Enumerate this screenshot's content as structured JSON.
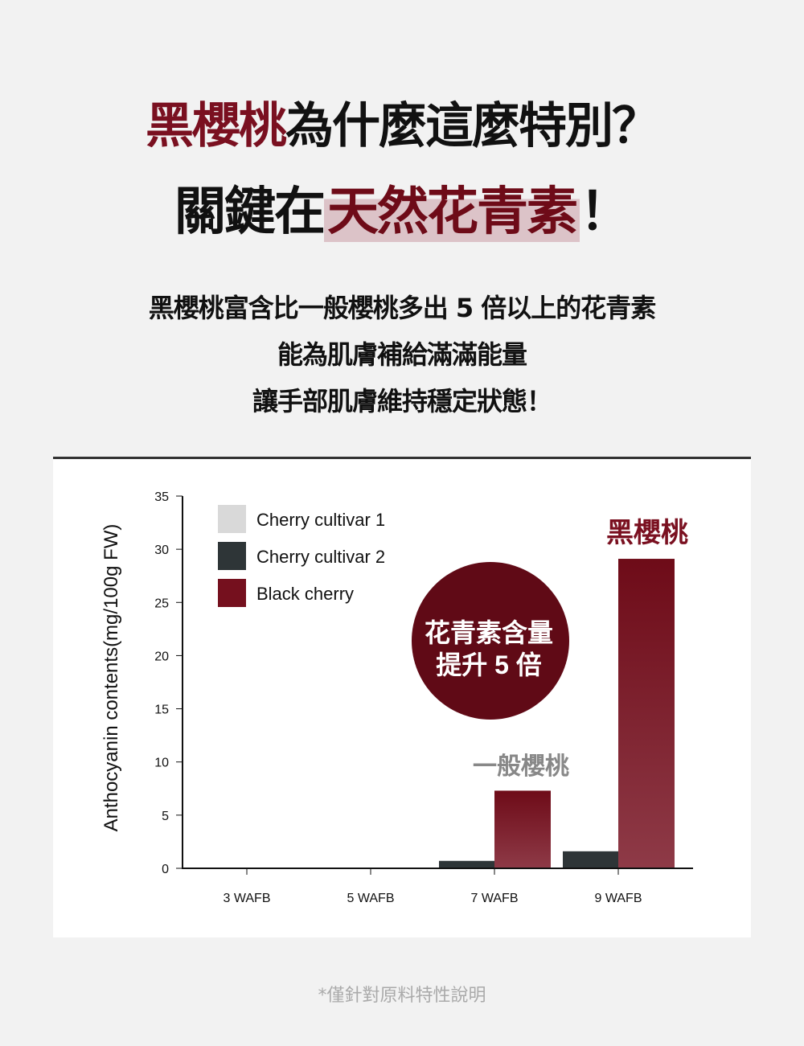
{
  "headline": {
    "line1_highlight": "黑櫻桃",
    "line1_rest": "為什麼這麼特別？",
    "line2_pre": "關鍵在",
    "line2_highlight": "天然花青素",
    "line2_post": "！"
  },
  "body": [
    "黑櫻桃富含比一般櫻桃多出 5 倍以上的花青素",
    "能為肌膚補給滿滿能量",
    "讓手部肌膚維持穩定狀態！"
  ],
  "callout": {
    "line1": "花青素含量",
    "line2": "提升 5 倍"
  },
  "annotations": {
    "black_cherry": "黑櫻桃",
    "regular_cherry": "一般櫻桃"
  },
  "footnote": "*僅針對原料特性說明",
  "colors": {
    "accent": "#6e0b18",
    "cultivar1": "#d9d9d9",
    "cultivar2": "#2e3537",
    "black_cherry": "#75101e"
  },
  "chart_data": {
    "type": "bar",
    "ylabel": "Anthocyanin contents(mg/100g FW)",
    "xlabel": "",
    "ylim": [
      0,
      35
    ],
    "yticks": [
      0,
      5,
      10,
      15,
      20,
      25,
      30,
      35
    ],
    "categories": [
      "3 WAFB",
      "5 WAFB",
      "7 WAFB",
      "9 WAFB"
    ],
    "legend_position": "top-left",
    "grid": false,
    "series": [
      {
        "name": "Cherry cultivar 1",
        "values": [
          0,
          0,
          0,
          0
        ]
      },
      {
        "name": "Cherry cultivar 2",
        "values": [
          0,
          0,
          0.7,
          1.6
        ]
      },
      {
        "name": "Black cherry",
        "values": [
          0,
          0,
          7.3,
          29.1
        ]
      }
    ]
  }
}
